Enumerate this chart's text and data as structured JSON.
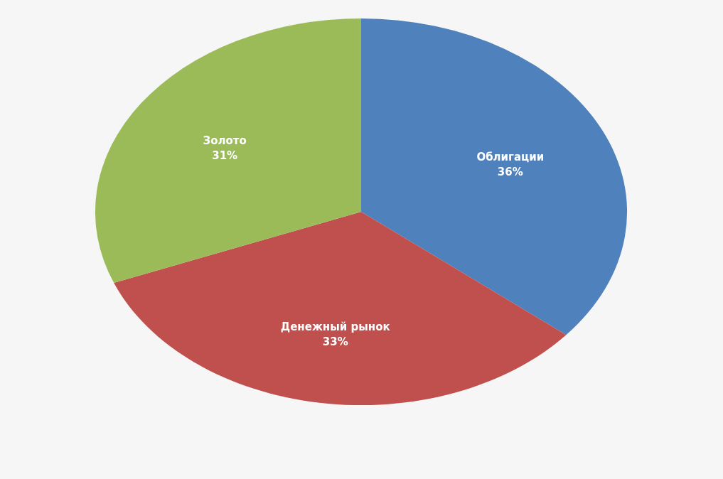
{
  "chart_data": {
    "type": "pie",
    "categories": [
      "Облигации",
      "Денежный рынок",
      "Золото"
    ],
    "values": [
      36,
      33,
      31
    ],
    "colors": [
      "#4f81bd",
      "#c0504d",
      "#9bbb59"
    ],
    "value_labels": [
      "36%",
      "33%",
      "31%"
    ]
  }
}
